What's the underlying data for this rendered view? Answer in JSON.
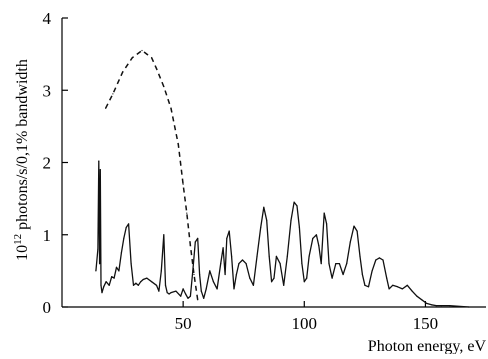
{
  "chart_data": {
    "type": "line",
    "title": "",
    "xlabel": "Photon energy, eV",
    "ylabel_base": "10",
    "ylabel_sup": "12",
    "ylabel_rest": " photons/s/0,1% bandwidth",
    "xlim": [
      0,
      175
    ],
    "ylim": [
      0,
      4
    ],
    "x_ticks": [
      50,
      100,
      150
    ],
    "y_ticks": [
      0,
      1,
      2,
      3,
      4
    ],
    "grid": false,
    "legend": "none",
    "series": [
      {
        "style": "solid",
        "color": "#111111",
        "x": [
          14.0,
          14.8,
          15.2,
          15.5,
          15.8,
          16.1,
          16.5,
          17.2,
          18.2,
          19.5,
          20.5,
          21.5,
          22.5,
          23.5,
          24.5,
          25.5,
          26.5,
          27.5,
          28.5,
          29.5,
          30.5,
          31.5,
          32.5,
          33.5,
          35.0,
          37.0,
          39.0,
          40.0,
          41.0,
          42.0,
          42.7,
          43.4,
          44.2,
          45.0,
          47.0,
          49.0,
          50.0,
          51.0,
          52.0,
          53.0,
          54.0,
          55.0,
          56.0,
          56.8,
          57.5,
          58.5,
          59.5,
          61.0,
          62.5,
          64.0,
          65.5,
          66.5,
          67.3,
          68.0,
          69.0,
          70.0,
          71.0,
          72.0,
          73.0,
          74.5,
          76.0,
          77.5,
          79.0,
          80.5,
          82.0,
          83.3,
          84.5,
          85.5,
          86.5,
          87.5,
          88.5,
          90.0,
          91.5,
          93.0,
          94.5,
          95.8,
          97.0,
          98.0,
          99.0,
          100.0,
          101.0,
          102.0,
          103.5,
          105.0,
          106.0,
          107.0,
          108.2,
          109.2,
          110.2,
          111.5,
          113.0,
          114.5,
          116.0,
          117.5,
          119.0,
          120.5,
          121.8,
          123.0,
          124.0,
          125.0,
          126.5,
          128.0,
          129.5,
          131.0,
          132.5,
          134.0,
          135.0,
          136.5,
          138.5,
          140.5,
          142.5,
          144.5,
          146.5,
          148.5,
          150.5,
          152.5,
          154.5,
          156.5,
          160.0,
          168.0
        ],
        "y": [
          0.5,
          0.8,
          2.02,
          0.6,
          1.9,
          0.3,
          0.2,
          0.28,
          0.35,
          0.3,
          0.42,
          0.4,
          0.55,
          0.5,
          0.75,
          0.95,
          1.1,
          1.15,
          0.6,
          0.3,
          0.33,
          0.3,
          0.35,
          0.38,
          0.4,
          0.35,
          0.3,
          0.22,
          0.5,
          1.0,
          0.3,
          0.2,
          0.18,
          0.2,
          0.22,
          0.15,
          0.25,
          0.18,
          0.12,
          0.15,
          0.5,
          0.9,
          0.95,
          0.45,
          0.22,
          0.12,
          0.25,
          0.5,
          0.35,
          0.25,
          0.6,
          0.82,
          0.45,
          0.95,
          1.05,
          0.7,
          0.25,
          0.45,
          0.6,
          0.65,
          0.6,
          0.4,
          0.3,
          0.7,
          1.1,
          1.38,
          1.2,
          0.7,
          0.35,
          0.4,
          0.7,
          0.6,
          0.3,
          0.7,
          1.2,
          1.45,
          1.4,
          1.1,
          0.6,
          0.35,
          0.4,
          0.7,
          0.95,
          1.0,
          0.85,
          0.6,
          1.3,
          1.15,
          0.6,
          0.4,
          0.6,
          0.6,
          0.45,
          0.6,
          0.9,
          1.12,
          1.05,
          0.7,
          0.45,
          0.3,
          0.28,
          0.5,
          0.65,
          0.68,
          0.65,
          0.4,
          0.25,
          0.3,
          0.28,
          0.25,
          0.3,
          0.22,
          0.15,
          0.1,
          0.05,
          0.03,
          0.02,
          0.02,
          0.02,
          0.0
        ]
      },
      {
        "style": "dashed",
        "color": "#111111",
        "x": [
          18,
          21,
          25,
          29,
          33,
          35,
          37,
          39,
          42,
          45,
          48,
          50,
          51.5,
          53,
          54.5,
          56
        ],
        "y": [
          2.75,
          2.95,
          3.25,
          3.45,
          3.55,
          3.5,
          3.45,
          3.3,
          3.05,
          2.75,
          2.25,
          1.7,
          1.3,
          0.85,
          0.45,
          0.1
        ]
      }
    ]
  }
}
